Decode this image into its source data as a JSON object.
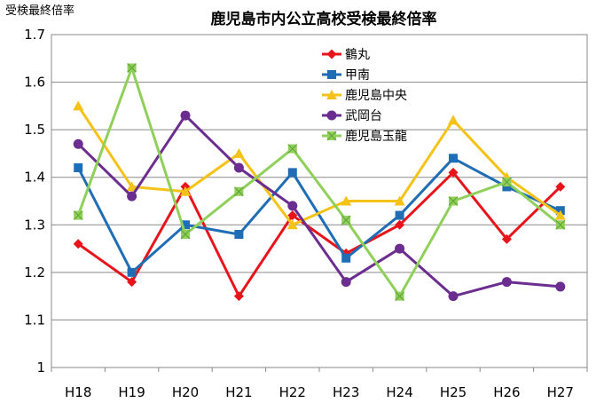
{
  "chart_data": {
    "type": "line",
    "title": "鹿児島市内公立高校受検最終倍率",
    "ylabel": "受検最終倍率",
    "xlabel": "",
    "categories": [
      "H18",
      "H19",
      "H20",
      "H21",
      "H22",
      "H23",
      "H24",
      "H25",
      "H26",
      "H27"
    ],
    "ylim": [
      1,
      1.7
    ],
    "yticks": [
      "1",
      "1.1",
      "1.2",
      "1.3",
      "1.4",
      "1.5",
      "1.6",
      "1.7"
    ],
    "grid": true,
    "legend_position": "top-center",
    "series": [
      {
        "name": "鶴丸",
        "color": "#e8141b",
        "marker": "diamond",
        "values": [
          1.26,
          1.18,
          1.38,
          1.15,
          1.32,
          1.24,
          1.3,
          1.41,
          1.27,
          1.38
        ]
      },
      {
        "name": "甲南",
        "color": "#1f6db4",
        "marker": "square",
        "values": [
          1.42,
          1.2,
          1.3,
          1.28,
          1.41,
          1.23,
          1.32,
          1.44,
          1.38,
          1.33
        ]
      },
      {
        "name": "鹿児島中央",
        "color": "#f5c218",
        "marker": "triangle",
        "values": [
          1.55,
          1.38,
          1.37,
          1.45,
          1.3,
          1.35,
          1.35,
          1.52,
          1.4,
          1.32
        ]
      },
      {
        "name": "武岡台",
        "color": "#6b2d8f",
        "marker": "circle",
        "values": [
          1.47,
          1.36,
          1.53,
          1.42,
          1.34,
          1.18,
          1.25,
          1.15,
          1.18,
          1.17
        ]
      },
      {
        "name": "鹿児島玉龍",
        "color": "#8fd05a",
        "marker": "xsquare",
        "values": [
          1.32,
          1.63,
          1.28,
          1.37,
          1.46,
          1.31,
          1.15,
          1.35,
          1.39,
          1.3
        ]
      }
    ]
  }
}
